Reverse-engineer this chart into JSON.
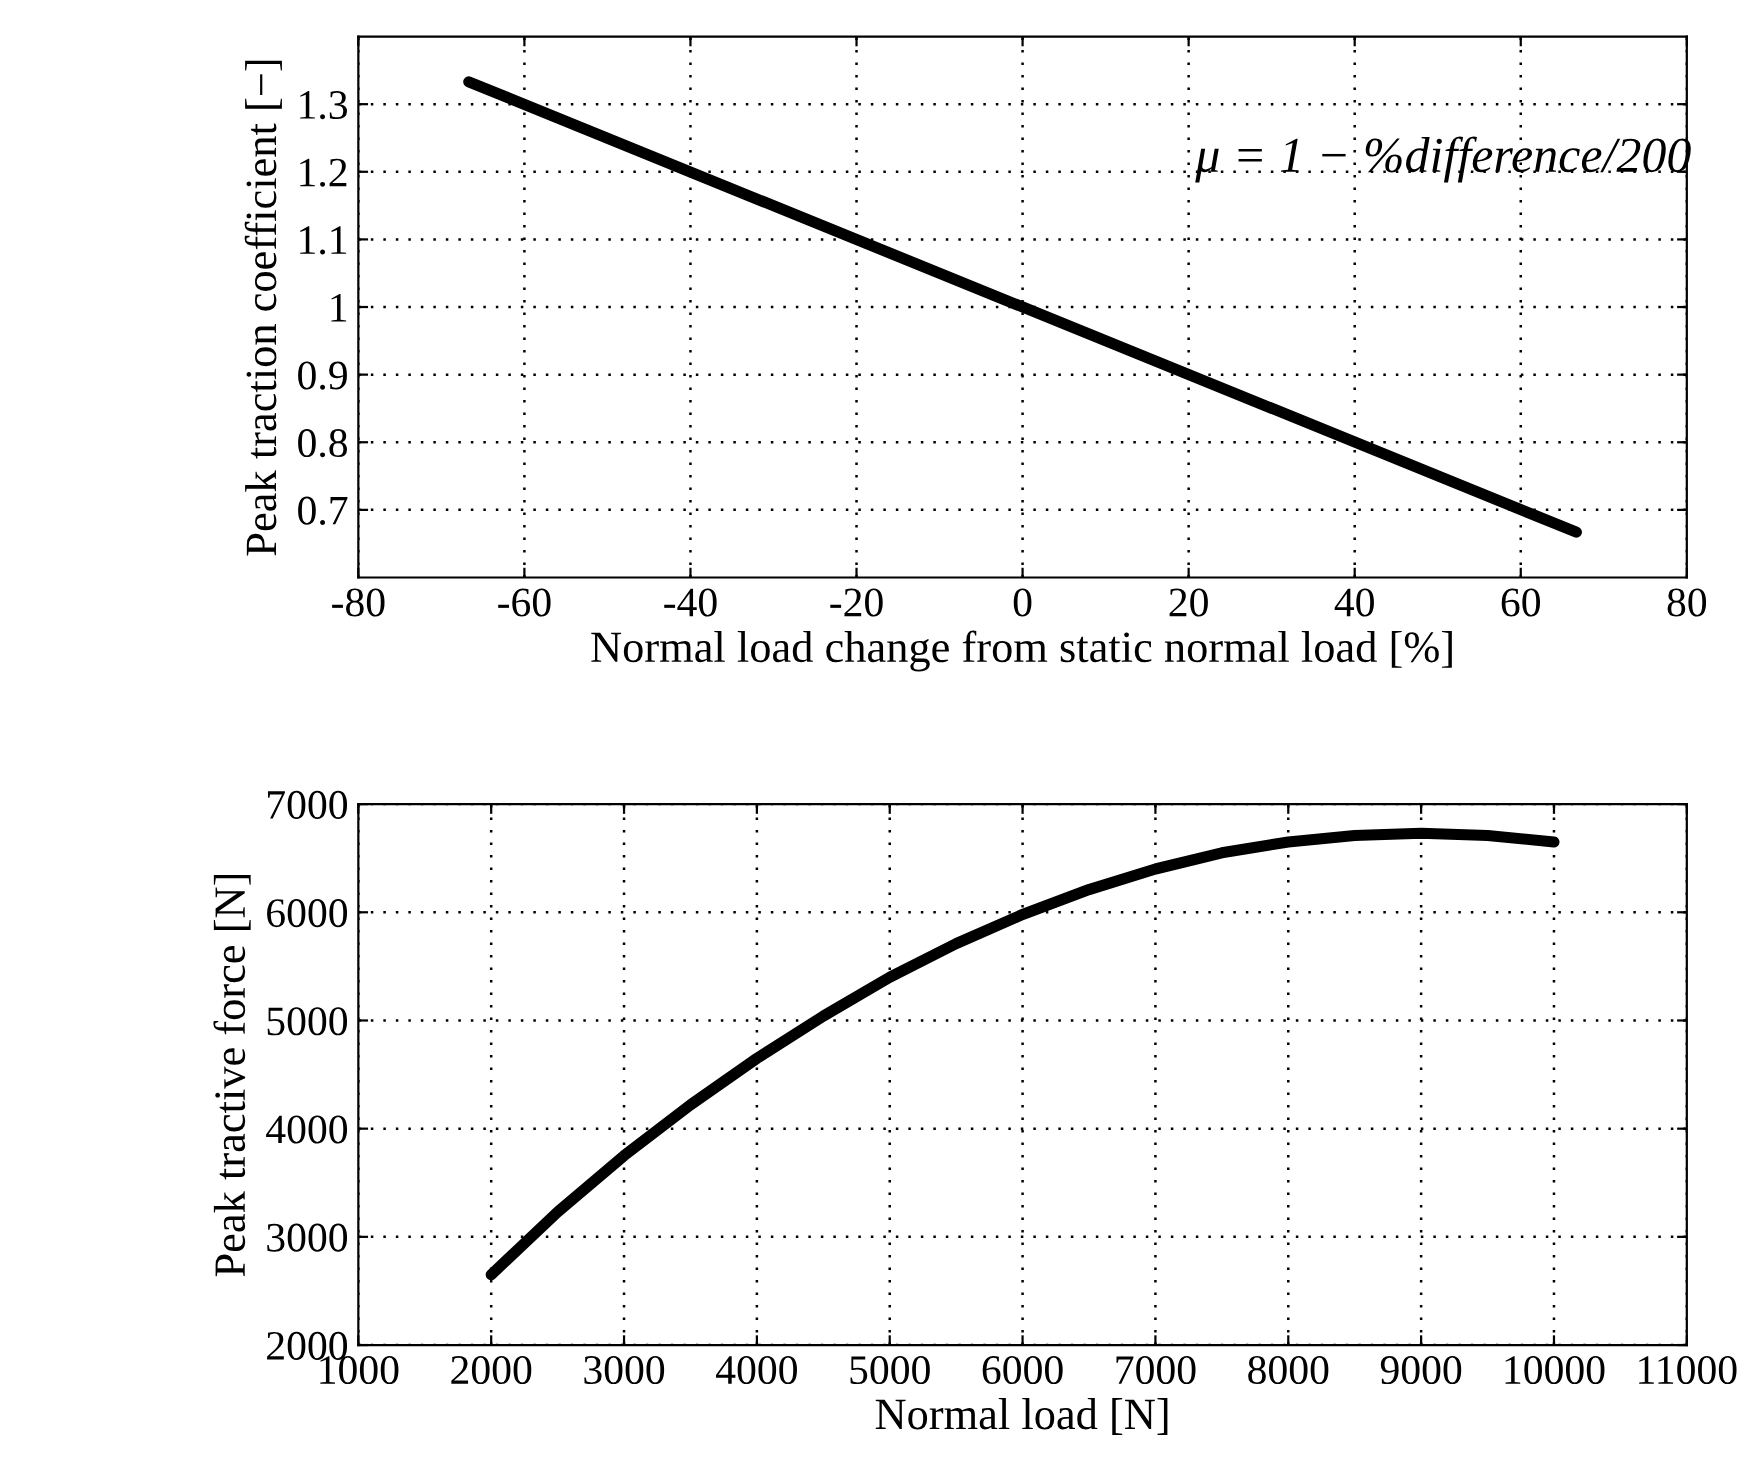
{
  "chart_data": [
    {
      "type": "line",
      "xlabel": "Normal load change from static normal load [%]",
      "ylabel": "Peak traction coefficient [−]",
      "x": [
        -66.7,
        66.7
      ],
      "values": [
        1.333,
        0.667
      ],
      "color": "#000000",
      "xlim": [
        -80,
        80
      ],
      "xticks": [
        -80,
        -60,
        -40,
        -20,
        0,
        20,
        40,
        60,
        80
      ],
      "ylim": [
        0.6,
        1.4
      ],
      "yticks": [
        0.7,
        0.8,
        0.9,
        1,
        1.1,
        1.2,
        1.3
      ],
      "grid": true,
      "annotations": [
        "μ = 1 − %difference/200"
      ]
    },
    {
      "type": "line",
      "xlabel": "Normal load [N]",
      "ylabel": "Peak tractive force [N]",
      "x": [
        2000,
        2500,
        3000,
        3500,
        4000,
        4500,
        5000,
        5500,
        6000,
        6500,
        7000,
        7500,
        8000,
        8500,
        9000,
        9500,
        10000
      ],
      "values": [
        2650,
        3230,
        3750,
        4220,
        4650,
        5040,
        5400,
        5710,
        5980,
        6210,
        6400,
        6550,
        6650,
        6710,
        6730,
        6710,
        6650
      ],
      "color": "#000000",
      "xlim": [
        1000,
        11000
      ],
      "xticks": [
        1000,
        2000,
        3000,
        4000,
        5000,
        6000,
        7000,
        8000,
        9000,
        10000,
        11000
      ],
      "ylim": [
        2000,
        7000
      ],
      "yticks": [
        2000,
        3000,
        4000,
        5000,
        6000,
        7000
      ],
      "grid": true
    }
  ]
}
